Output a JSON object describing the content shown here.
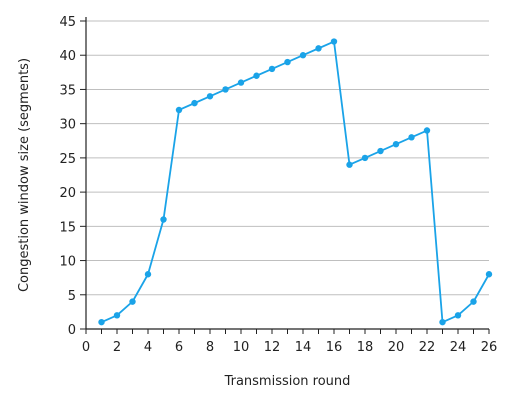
{
  "chart_data": {
    "type": "line",
    "title": "",
    "xlabel": "Transmission round",
    "ylabel": "Congestion window size (segments)",
    "xlim": [
      0,
      26
    ],
    "ylim": [
      0,
      45
    ],
    "x_ticks": [
      0,
      2,
      4,
      6,
      8,
      10,
      12,
      14,
      16,
      18,
      20,
      22,
      24,
      26
    ],
    "y_ticks": [
      0,
      5,
      10,
      15,
      20,
      25,
      30,
      35,
      40,
      45
    ],
    "grid": "horizontal",
    "legend": "none",
    "line_color": "#1aa3e8",
    "grid_color": "#bfbfbf",
    "series": [
      {
        "x": [
          1,
          2,
          3,
          4,
          5,
          6,
          7,
          8,
          9,
          10,
          11,
          12,
          13,
          14,
          15,
          16,
          17,
          18,
          19,
          20,
          21,
          22,
          23,
          24,
          25,
          26
        ],
        "values": [
          1,
          2,
          4,
          8,
          16,
          32,
          33,
          34,
          35,
          36,
          37,
          38,
          39,
          40,
          41,
          42,
          24,
          25,
          26,
          27,
          28,
          29,
          1,
          2,
          4,
          8
        ]
      }
    ]
  }
}
